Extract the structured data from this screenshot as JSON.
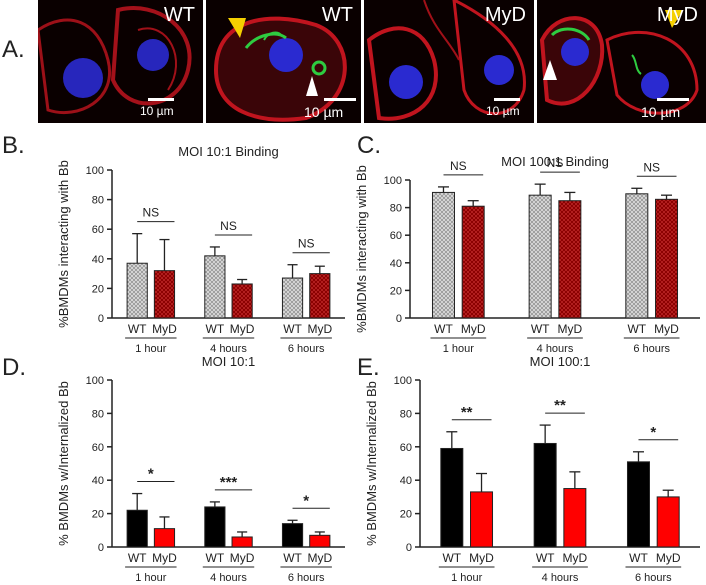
{
  "panel_labels": {
    "a": "A.",
    "b": "B.",
    "c": "C.",
    "d": "D.",
    "e": "E."
  },
  "micrographs": [
    {
      "label": "WT",
      "scale": "10 µm"
    },
    {
      "label": "WT",
      "scale": "10 µm"
    },
    {
      "label": "MyD",
      "scale": "10 µm"
    },
    {
      "label": "MyD",
      "scale": "10 µm"
    }
  ],
  "colors": {
    "wt_hatch": "#9a9a9a",
    "myd_hatch": "#8b0000",
    "wt_solid": "#000000",
    "myd_solid": "#ff0000",
    "micro_red": "#c0141e",
    "micro_blue": "#2a2ad0",
    "micro_green": "#2ecc40",
    "arrow_yellow": "#f5d000",
    "arrow_white": "#ffffff"
  },
  "chart_data": [
    {
      "id": "B",
      "type": "bar",
      "style": "hatched",
      "title": "MOI 10:1 Binding",
      "ylabel": "%BMDMs interacting with Bb",
      "ylim": [
        0,
        100
      ],
      "yticks": [
        0,
        20,
        40,
        60,
        80,
        100
      ],
      "groups": [
        "1 hour",
        "4 hours",
        "6 hours"
      ],
      "bar_labels": [
        "WT",
        "MyD"
      ],
      "series": [
        {
          "name": "WT",
          "values": [
            37,
            42,
            27
          ],
          "errors": [
            20,
            6,
            9
          ]
        },
        {
          "name": "MyD",
          "values": [
            32,
            23,
            30
          ],
          "errors": [
            21,
            3,
            5
          ]
        }
      ],
      "significance": [
        "NS",
        "NS",
        "NS"
      ]
    },
    {
      "id": "C",
      "type": "bar",
      "style": "hatched",
      "title": "MOI 100:1 Binding",
      "ylabel": "%BMDMs interacting with Bb",
      "ylim": [
        0,
        100
      ],
      "yticks": [
        0,
        20,
        40,
        60,
        80,
        100
      ],
      "groups": [
        "1 hour",
        "4 hours",
        "6 hours"
      ],
      "bar_labels": [
        "WT",
        "MyD"
      ],
      "series": [
        {
          "name": "WT",
          "values": [
            91,
            89,
            90
          ],
          "errors": [
            4,
            8,
            4
          ]
        },
        {
          "name": "MyD",
          "values": [
            81,
            85,
            86
          ],
          "errors": [
            4,
            6,
            3
          ]
        }
      ],
      "significance": [
        "NS",
        "NS",
        "NS"
      ]
    },
    {
      "id": "D",
      "type": "bar",
      "style": "solid",
      "title": "MOI 10:1",
      "ylabel": "% BMDMs w/Internalized Bb",
      "ylim": [
        0,
        100
      ],
      "yticks": [
        0,
        20,
        40,
        60,
        80,
        100
      ],
      "groups": [
        "1 hour",
        "4 hours",
        "6 hours"
      ],
      "bar_labels": [
        "WT",
        "MyD"
      ],
      "series": [
        {
          "name": "WT",
          "values": [
            22,
            24,
            14
          ],
          "errors": [
            10,
            3,
            2
          ]
        },
        {
          "name": "MyD",
          "values": [
            11,
            6,
            7
          ],
          "errors": [
            7,
            3,
            2
          ]
        }
      ],
      "significance": [
        "*",
        "***",
        "*"
      ]
    },
    {
      "id": "E",
      "type": "bar",
      "style": "solid",
      "title": "MOI 100:1",
      "ylabel": "% BMDMs w/Internalized Bb",
      "ylim": [
        0,
        100
      ],
      "yticks": [
        0,
        20,
        40,
        60,
        80,
        100
      ],
      "groups": [
        "1 hour",
        "4 hours",
        "6 hours"
      ],
      "bar_labels": [
        "WT",
        "MyD"
      ],
      "series": [
        {
          "name": "WT",
          "values": [
            59,
            62,
            51
          ],
          "errors": [
            10,
            11,
            6
          ]
        },
        {
          "name": "MyD",
          "values": [
            33,
            35,
            30
          ],
          "errors": [
            11,
            10,
            4
          ]
        }
      ],
      "significance": [
        "**",
        "**",
        "*"
      ]
    }
  ]
}
